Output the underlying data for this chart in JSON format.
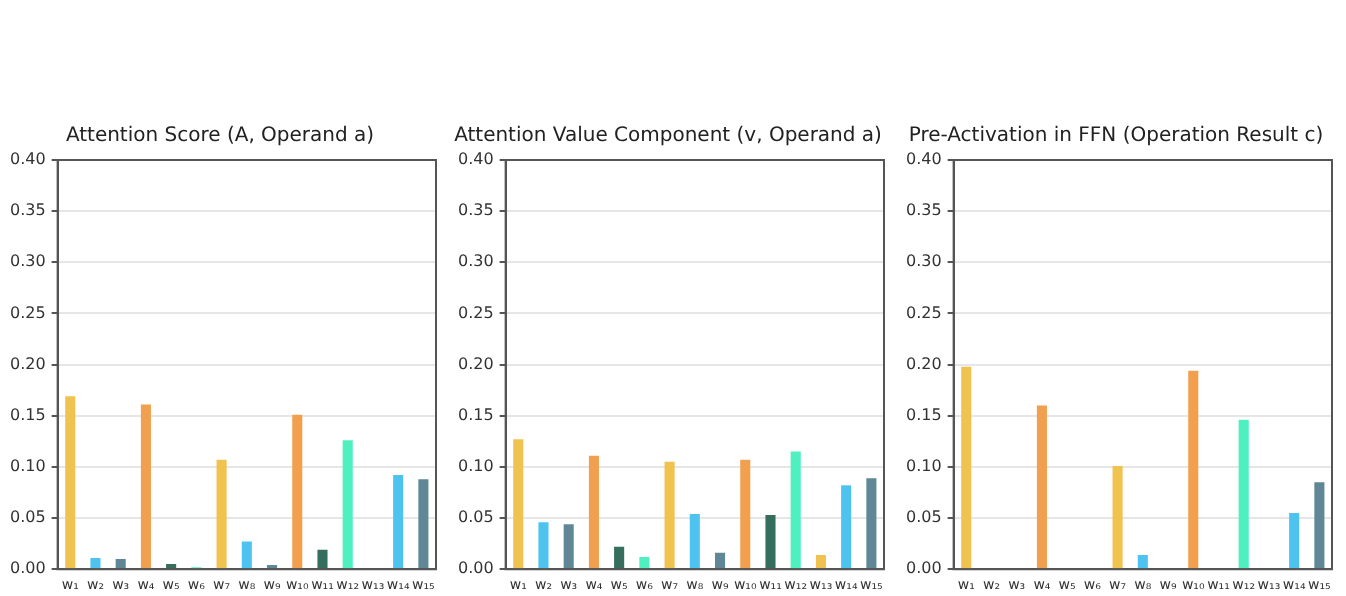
{
  "chart_data": [
    {
      "type": "bar",
      "title": "Attention Score (A, Operand a)",
      "categories": [
        "w₁",
        "w₂",
        "w₃",
        "w₄",
        "w₅",
        "w₆",
        "w₇",
        "w₈",
        "w₉",
        "w₁₀",
        "w₁₁",
        "w₁₂",
        "w₁₃",
        "w₁₄",
        "w₁₅"
      ],
      "values": [
        0.169,
        0.011,
        0.01,
        0.161,
        0.005,
        0.002,
        0.107,
        0.027,
        0.004,
        0.151,
        0.019,
        0.126,
        null,
        0.092,
        0.088
      ],
      "colors": [
        "#f0c24f",
        "#4fc3f0",
        "#5f8796",
        "#f0a04f",
        "#356e5c",
        "#4ff0c0",
        "#f0c24f",
        "#4fc3f0",
        "#5f8796",
        "#f0a04f",
        "#356e5c",
        "#4ff0c0",
        "#f0c24f",
        "#4fc3f0",
        "#5f8796"
      ],
      "ylim": [
        0,
        0.4
      ],
      "yticks": [
        {
          "value": 0,
          "label": "0.00"
        },
        {
          "value": 0.05,
          "label": "0.05"
        },
        {
          "value": 0.1,
          "label": "0.10"
        },
        {
          "value": 0.15,
          "label": "0.15"
        },
        {
          "value": 0.2,
          "label": "0.20"
        },
        {
          "value": 0.25,
          "label": "0.25"
        },
        {
          "value": 0.3,
          "label": "0.30"
        },
        {
          "value": 0.35,
          "label": "0.35"
        },
        {
          "value": 0.4,
          "label": "0.40"
        }
      ],
      "grid": "y",
      "legend": false
    },
    {
      "type": "bar",
      "title": "Attention Value Component (v, Operand a)",
      "categories": [
        "w₁",
        "w₂",
        "w₃",
        "w₄",
        "w₅",
        "w₆",
        "w₇",
        "w₈",
        "w₉",
        "w₁₀",
        "w₁₁",
        "w₁₂",
        "w₁₃",
        "w₁₄",
        "w₁₅"
      ],
      "values": [
        0.127,
        0.046,
        0.044,
        0.111,
        0.022,
        0.012,
        0.105,
        0.054,
        0.016,
        0.107,
        0.053,
        0.115,
        0.014,
        0.082,
        0.089
      ],
      "colors": [
        "#f0c24f",
        "#4fc3f0",
        "#5f8796",
        "#f0a04f",
        "#356e5c",
        "#4ff0c0",
        "#f0c24f",
        "#4fc3f0",
        "#5f8796",
        "#f0a04f",
        "#356e5c",
        "#4ff0c0",
        "#f0c24f",
        "#4fc3f0",
        "#5f8796"
      ],
      "ylim": [
        0,
        0.4
      ],
      "yticks": [
        {
          "value": 0,
          "label": "0.00"
        },
        {
          "value": 0.05,
          "label": "0.05"
        },
        {
          "value": 0.1,
          "label": "0.10"
        },
        {
          "value": 0.15,
          "label": "0.15"
        },
        {
          "value": 0.2,
          "label": "0.20"
        },
        {
          "value": 0.25,
          "label": "0.25"
        },
        {
          "value": 0.3,
          "label": "0.30"
        },
        {
          "value": 0.35,
          "label": "0.35"
        },
        {
          "value": 0.4,
          "label": "0.40"
        }
      ],
      "grid": "y",
      "legend": false
    },
    {
      "type": "bar",
      "title": "Pre-Activation in FFN (Operation Result c)",
      "categories": [
        "w₁",
        "w₂",
        "w₃",
        "w₄",
        "w₅",
        "w₆",
        "w₇",
        "w₈",
        "w₉",
        "w₁₀",
        "w₁₁",
        "w₁₂",
        "w₁₃",
        "w₁₄",
        "w₁₅"
      ],
      "values": [
        0.198,
        0,
        0,
        0.16,
        0,
        0,
        0.101,
        0.014,
        0,
        0.194,
        0,
        0.146,
        0,
        0.055,
        0.085
      ],
      "colors": [
        "#f0c24f",
        "#4fc3f0",
        "#5f8796",
        "#f0a04f",
        "#356e5c",
        "#4ff0c0",
        "#f0c24f",
        "#4fc3f0",
        "#5f8796",
        "#f0a04f",
        "#356e5c",
        "#4ff0c0",
        "#f0c24f",
        "#4fc3f0",
        "#5f8796"
      ],
      "ylim": [
        0,
        0.4
      ],
      "yticks": [
        {
          "value": 0,
          "label": "0.00"
        },
        {
          "value": 0.05,
          "label": "0.05"
        },
        {
          "value": 0.1,
          "label": "0.10"
        },
        {
          "value": 0.15,
          "label": "0.15"
        },
        {
          "value": 0.2,
          "label": "0.20"
        },
        {
          "value": 0.25,
          "label": "0.25"
        },
        {
          "value": 0.3,
          "label": "0.30"
        },
        {
          "value": 0.35,
          "label": "0.35"
        },
        {
          "value": 0.4,
          "label": "0.40"
        }
      ],
      "grid": "y",
      "legend": false
    }
  ]
}
